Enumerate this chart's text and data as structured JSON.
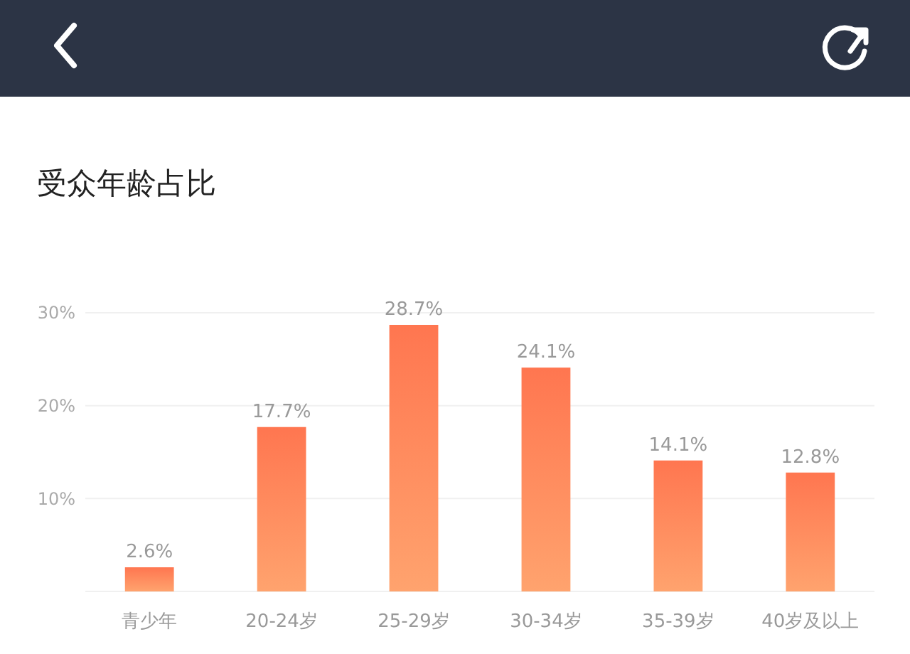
{
  "chart_data": {
    "type": "bar",
    "title": "受众年龄占比",
    "categories": [
      "青少年",
      "20-24岁",
      "25-29岁",
      "30-34岁",
      "35-39岁",
      "40岁及以上"
    ],
    "values": [
      2.6,
      17.7,
      28.7,
      24.1,
      14.1,
      12.8
    ],
    "value_labels": [
      "2.6%",
      "17.7%",
      "28.7%",
      "24.1%",
      "14.1%",
      "12.8%"
    ],
    "color": "#ff7650",
    "ylim": [
      0,
      30
    ],
    "yticks": [
      {
        "value": 10,
        "label": "10%"
      },
      {
        "value": 20,
        "label": "20%"
      },
      {
        "value": 30,
        "label": "30%"
      }
    ],
    "grid": "y"
  }
}
